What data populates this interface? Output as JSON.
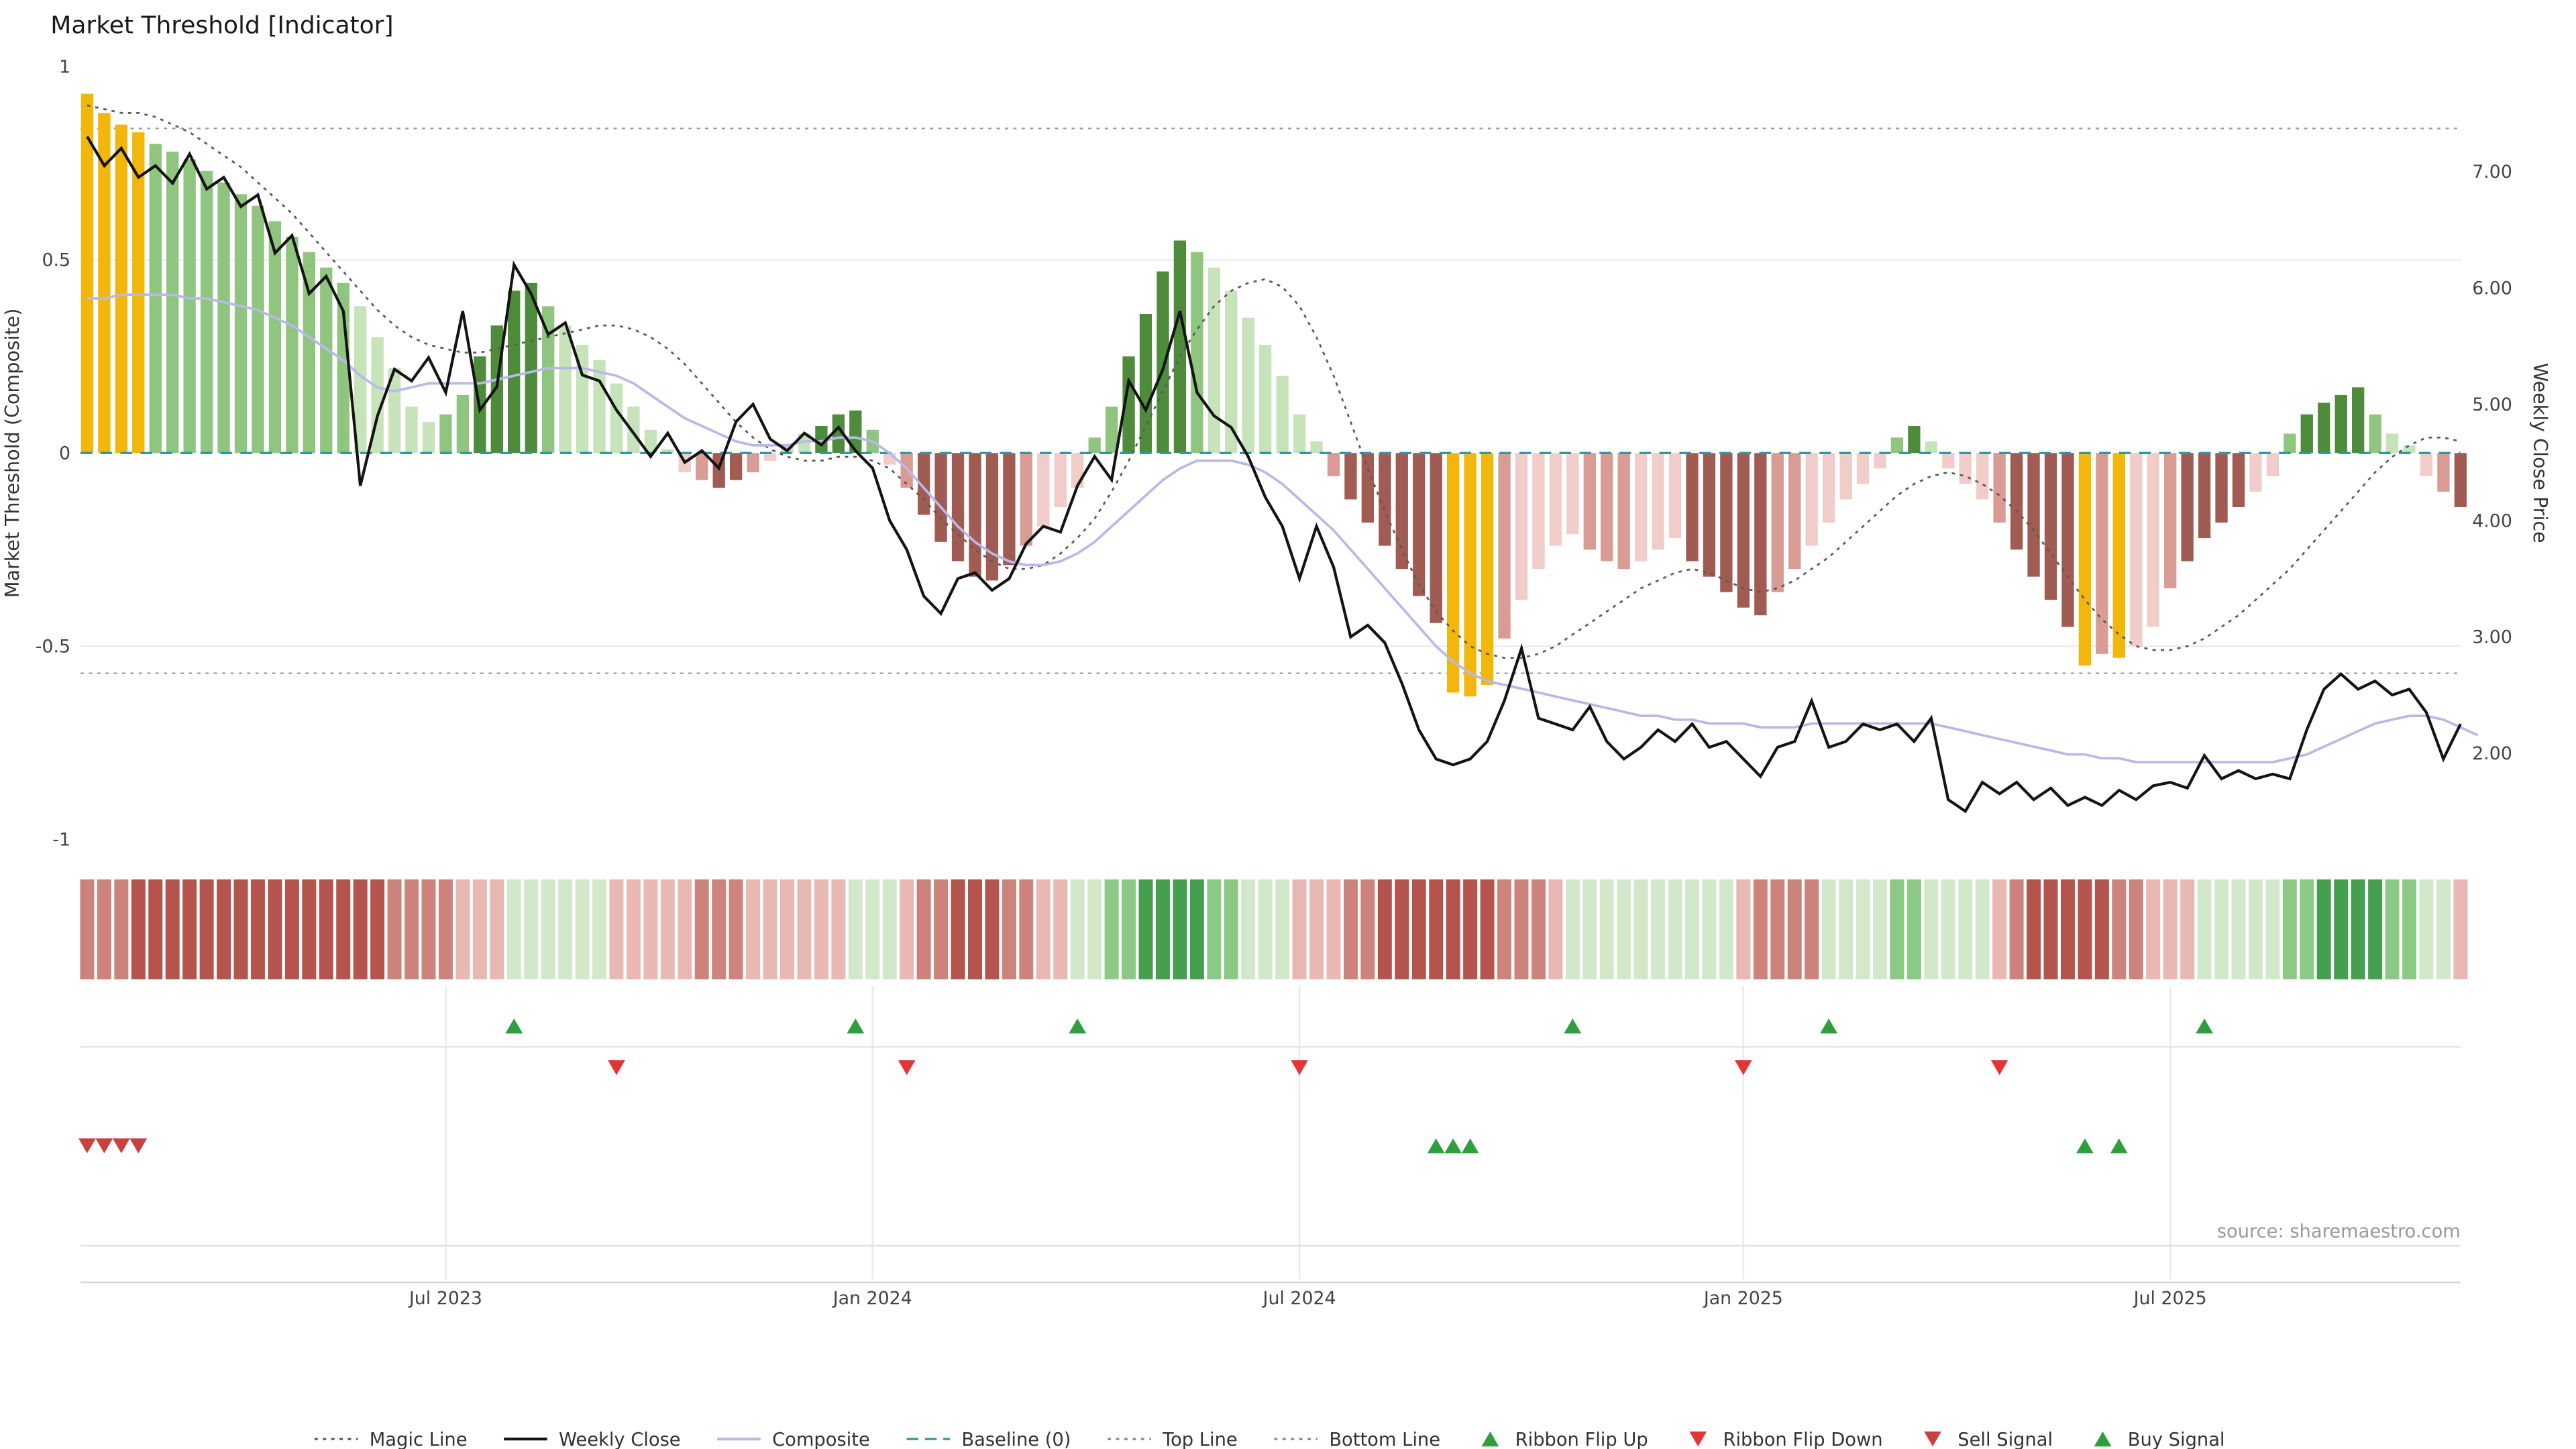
{
  "page": {
    "title": "Market Threshold [Indicator]",
    "source": "source: sharemaestro.com"
  },
  "axes": {
    "left_label": "Market Threshold (Composite)",
    "left_ticks": [
      "1",
      "0.5",
      "0",
      "-0.5",
      "-1"
    ],
    "right_label": "Weekly Close Price",
    "right_ticks": [
      "7.00",
      "6.00",
      "5.00",
      "4.00",
      "3.00",
      "2.00"
    ]
  },
  "legend": [
    {
      "label": "Magic Line",
      "type": "dotted",
      "color": "#5a5a5a"
    },
    {
      "label": "Weekly Close",
      "type": "solid",
      "color": "#141414"
    },
    {
      "label": "Composite",
      "type": "solid",
      "color": "#b9b9e8"
    },
    {
      "label": "Baseline (0)",
      "type": "dashed",
      "color": "#2e99a0"
    },
    {
      "label": "Top Line",
      "type": "dotted",
      "color": "#8a8a8a"
    },
    {
      "label": "Bottom Line",
      "type": "dotted",
      "color": "#8a8a8a"
    },
    {
      "label": "Ribbon Flip Up",
      "type": "tri-up",
      "color": "#2f9e3f"
    },
    {
      "label": "Ribbon Flip Down",
      "type": "tri-down",
      "color": "#e23535"
    },
    {
      "label": "Sell Signal",
      "type": "tri-down",
      "color": "#c94040"
    },
    {
      "label": "Buy Signal",
      "type": "tri-up",
      "color": "#2f9e3f"
    }
  ],
  "chart_data": {
    "type": "bar",
    "title": "Market Threshold [Indicator]",
    "xlabel": "",
    "ylabel_left": "Market Threshold (Composite)",
    "ylabel_right": "Weekly Close Price",
    "left_ylim": [
      -1,
      1
    ],
    "right_price_ylim": [
      1.2,
      7.9
    ],
    "top_line": 0.84,
    "bottom_line": -0.57,
    "baseline": 0,
    "freq": "weekly",
    "x_ticks": [
      {
        "label": "Jul 2023",
        "week": 21
      },
      {
        "label": "Jan 2024",
        "week": 46
      },
      {
        "label": "Jul 2024",
        "week": 71
      },
      {
        "label": "Jan 2025",
        "week": 97
      },
      {
        "label": "Jul 2025",
        "week": 122
      }
    ],
    "palette": {
      "Y": "#f2b70a",
      "g1": "#4e8c3c",
      "g2": "#8fc57e",
      "g3": "#c6e3ba",
      "r1": "#a05b52",
      "r2": "#d99c94",
      "r3": "#f0cdc8",
      "R1": "#b5544c",
      "R2": "#cd837b",
      "R3": "#e9b8b2",
      "G1": "#44a04e",
      "G2": "#8cc985",
      "G3": "#d2e9c9",
      "weekly_close": "#141414",
      "composite": "#b9b9e8",
      "magic": "#5a5a5a",
      "baseline": "#2e99a0",
      "topline": "#9a9a9a",
      "flip_up": "#2f9e3f",
      "flip_down": "#e23535",
      "sell": "#c94040",
      "buy": "#2f9e3f"
    },
    "bars": {
      "values": [
        0.93,
        0.88,
        0.85,
        0.83,
        0.8,
        0.78,
        0.76,
        0.73,
        0.7,
        0.67,
        0.64,
        0.6,
        0.56,
        0.52,
        0.48,
        0.44,
        0.38,
        0.3,
        0.22,
        0.12,
        0.08,
        0.1,
        0.15,
        0.25,
        0.33,
        0.42,
        0.44,
        0.38,
        0.33,
        0.28,
        0.24,
        0.18,
        0.12,
        0.06,
        0.01,
        -0.05,
        -0.07,
        -0.09,
        -0.07,
        -0.05,
        -0.02,
        0.02,
        0.05,
        0.07,
        0.1,
        0.11,
        0.06,
        -0.03,
        -0.09,
        -0.16,
        -0.23,
        -0.28,
        -0.32,
        -0.33,
        -0.29,
        -0.24,
        -0.19,
        -0.14,
        -0.09,
        0.04,
        0.12,
        0.25,
        0.36,
        0.47,
        0.55,
        0.52,
        0.48,
        0.42,
        0.35,
        0.28,
        0.2,
        0.1,
        0.03,
        -0.06,
        -0.12,
        -0.18,
        -0.24,
        -0.3,
        -0.37,
        -0.44,
        -0.62,
        -0.63,
        -0.6,
        -0.48,
        -0.38,
        -0.3,
        -0.24,
        -0.21,
        -0.25,
        -0.28,
        -0.3,
        -0.28,
        -0.25,
        -0.22,
        -0.28,
        -0.32,
        -0.36,
        -0.4,
        -0.42,
        -0.36,
        -0.3,
        -0.24,
        -0.18,
        -0.12,
        -0.08,
        -0.04,
        0.04,
        0.07,
        0.03,
        -0.04,
        -0.08,
        -0.12,
        -0.18,
        -0.25,
        -0.32,
        -0.38,
        -0.45,
        -0.55,
        -0.52,
        -0.53,
        -0.5,
        -0.45,
        -0.35,
        -0.28,
        -0.22,
        -0.18,
        -0.14,
        -0.1,
        -0.06,
        0.05,
        0.1,
        0.13,
        0.15,
        0.17,
        0.1,
        0.05,
        0.02,
        -0.06,
        -0.1,
        -0.14
      ],
      "colors": [
        "Y",
        "Y",
        "Y",
        "Y",
        "g2",
        "g2",
        "g2",
        "g2",
        "g2",
        "g2",
        "g2",
        "g2",
        "g2",
        "g2",
        "g2",
        "g2",
        "g3",
        "g3",
        "g3",
        "g3",
        "g3",
        "g2",
        "g2",
        "g1",
        "g1",
        "g1",
        "g1",
        "g2",
        "g3",
        "g3",
        "g3",
        "g3",
        "g3",
        "g3",
        "g3",
        "r3",
        "r2",
        "r1",
        "r1",
        "r2",
        "r3",
        "g3",
        "g3",
        "g1",
        "g1",
        "g1",
        "g2",
        "r3",
        "r2",
        "r1",
        "r1",
        "r1",
        "r1",
        "r1",
        "r1",
        "r2",
        "r3",
        "r3",
        "r3",
        "g2",
        "g2",
        "g1",
        "g1",
        "g1",
        "g1",
        "g2",
        "g3",
        "g3",
        "g3",
        "g3",
        "g3",
        "g3",
        "g3",
        "r2",
        "r1",
        "r1",
        "r1",
        "r1",
        "r1",
        "r1",
        "Y",
        "Y",
        "Y",
        "r2",
        "r3",
        "r3",
        "r3",
        "r3",
        "r2",
        "r2",
        "r2",
        "r3",
        "r3",
        "r3",
        "r1",
        "r1",
        "r1",
        "r1",
        "r1",
        "r2",
        "r2",
        "r3",
        "r3",
        "r3",
        "r3",
        "r3",
        "g2",
        "g1",
        "g3",
        "r3",
        "r3",
        "r3",
        "r2",
        "r1",
        "r1",
        "r1",
        "r1",
        "Y",
        "r2",
        "Y",
        "r3",
        "r3",
        "r2",
        "r1",
        "r1",
        "r1",
        "r1",
        "r3",
        "r3",
        "g2",
        "g1",
        "g1",
        "g1",
        "g1",
        "g2",
        "g3",
        "g3",
        "r3",
        "r2",
        "r1"
      ]
    },
    "weekly_close": [
      7.3,
      7.05,
      7.2,
      6.95,
      7.05,
      6.9,
      7.15,
      6.85,
      6.95,
      6.7,
      6.8,
      6.3,
      6.45,
      5.95,
      6.1,
      5.8,
      4.3,
      4.9,
      5.3,
      5.2,
      5.4,
      5.1,
      5.8,
      4.95,
      5.15,
      6.2,
      5.95,
      5.6,
      5.7,
      5.25,
      5.2,
      4.95,
      4.75,
      4.55,
      4.75,
      4.5,
      4.6,
      4.45,
      4.85,
      5.0,
      4.7,
      4.6,
      4.75,
      4.65,
      4.8,
      4.6,
      4.45,
      4.0,
      3.75,
      3.35,
      3.2,
      3.5,
      3.55,
      3.4,
      3.5,
      3.8,
      3.95,
      3.9,
      4.3,
      4.55,
      4.35,
      5.2,
      4.95,
      5.3,
      5.8,
      5.1,
      4.9,
      4.8,
      4.55,
      4.2,
      3.95,
      3.5,
      3.95,
      3.6,
      3.0,
      3.1,
      2.95,
      2.6,
      2.2,
      1.95,
      1.9,
      1.95,
      2.1,
      2.45,
      2.9,
      2.3,
      2.25,
      2.2,
      2.4,
      2.1,
      1.95,
      2.05,
      2.2,
      2.1,
      2.25,
      2.05,
      2.1,
      1.95,
      1.8,
      2.05,
      2.1,
      2.45,
      2.05,
      2.1,
      2.25,
      2.2,
      2.25,
      2.1,
      2.3,
      1.6,
      1.5,
      1.75,
      1.65,
      1.75,
      1.6,
      1.7,
      1.55,
      1.62,
      1.55,
      1.68,
      1.6,
      1.72,
      1.75,
      1.7,
      1.98,
      1.78,
      1.85,
      1.78,
      1.82,
      1.78,
      2.2,
      2.55,
      2.68,
      2.55,
      2.62,
      2.5,
      2.55,
      2.35,
      1.95,
      2.25
    ],
    "composite_line": [
      0.4,
      0.4,
      0.41,
      0.41,
      0.41,
      0.41,
      0.4,
      0.4,
      0.39,
      0.38,
      0.37,
      0.35,
      0.33,
      0.3,
      0.27,
      0.24,
      0.2,
      0.17,
      0.16,
      0.17,
      0.18,
      0.18,
      0.18,
      0.18,
      0.19,
      0.2,
      0.21,
      0.22,
      0.22,
      0.22,
      0.21,
      0.2,
      0.18,
      0.15,
      0.12,
      0.09,
      0.07,
      0.05,
      0.03,
      0.02,
      0.02,
      0.02,
      0.03,
      0.03,
      0.04,
      0.04,
      0.03,
      0.0,
      -0.04,
      -0.09,
      -0.14,
      -0.19,
      -0.23,
      -0.26,
      -0.28,
      -0.29,
      -0.29,
      -0.28,
      -0.26,
      -0.23,
      -0.19,
      -0.15,
      -0.11,
      -0.07,
      -0.04,
      -0.02,
      -0.02,
      -0.02,
      -0.03,
      -0.05,
      -0.08,
      -0.12,
      -0.16,
      -0.2,
      -0.25,
      -0.3,
      -0.35,
      -0.4,
      -0.45,
      -0.5,
      -0.54,
      -0.57,
      -0.59,
      -0.6,
      -0.61,
      -0.62,
      -0.63,
      -0.64,
      -0.65,
      -0.66,
      -0.67,
      -0.68,
      -0.68,
      -0.69,
      -0.69,
      -0.7,
      -0.7,
      -0.7,
      -0.71,
      -0.71,
      -0.71,
      -0.7,
      -0.7,
      -0.7,
      -0.7,
      -0.7,
      -0.7,
      -0.7,
      -0.7,
      -0.71,
      -0.72,
      -0.73,
      -0.74,
      -0.75,
      -0.76,
      -0.77,
      -0.78,
      -0.78,
      -0.79,
      -0.79,
      -0.8,
      -0.8,
      -0.8,
      -0.8,
      -0.8,
      -0.8,
      -0.8,
      -0.8,
      -0.8,
      -0.79,
      -0.78,
      -0.76,
      -0.74,
      -0.72,
      -0.7,
      -0.69,
      -0.68,
      -0.68,
      -0.69,
      -0.71,
      -0.73
    ],
    "magic_line": [
      0.9,
      0.89,
      0.88,
      0.88,
      0.87,
      0.85,
      0.83,
      0.8,
      0.77,
      0.74,
      0.7,
      0.66,
      0.62,
      0.57,
      0.52,
      0.47,
      0.42,
      0.37,
      0.33,
      0.3,
      0.28,
      0.27,
      0.26,
      0.26,
      0.27,
      0.28,
      0.29,
      0.3,
      0.31,
      0.32,
      0.33,
      0.33,
      0.32,
      0.3,
      0.27,
      0.23,
      0.18,
      0.13,
      0.08,
      0.04,
      0.01,
      -0.01,
      -0.02,
      -0.02,
      -0.01,
      -0.01,
      -0.02,
      -0.04,
      -0.08,
      -0.12,
      -0.17,
      -0.21,
      -0.25,
      -0.28,
      -0.3,
      -0.3,
      -0.29,
      -0.26,
      -0.22,
      -0.17,
      -0.1,
      -0.02,
      0.07,
      0.16,
      0.25,
      0.32,
      0.38,
      0.42,
      0.44,
      0.45,
      0.43,
      0.38,
      0.3,
      0.2,
      0.08,
      -0.04,
      -0.15,
      -0.25,
      -0.34,
      -0.41,
      -0.46,
      -0.5,
      -0.52,
      -0.53,
      -0.53,
      -0.52,
      -0.5,
      -0.47,
      -0.44,
      -0.41,
      -0.38,
      -0.35,
      -0.33,
      -0.31,
      -0.3,
      -0.31,
      -0.33,
      -0.35,
      -0.36,
      -0.35,
      -0.33,
      -0.3,
      -0.27,
      -0.23,
      -0.19,
      -0.15,
      -0.11,
      -0.08,
      -0.06,
      -0.05,
      -0.06,
      -0.08,
      -0.11,
      -0.15,
      -0.2,
      -0.26,
      -0.32,
      -0.38,
      -0.43,
      -0.47,
      -0.5,
      -0.51,
      -0.51,
      -0.5,
      -0.48,
      -0.45,
      -0.42,
      -0.38,
      -0.34,
      -0.3,
      -0.25,
      -0.2,
      -0.15,
      -0.1,
      -0.05,
      -0.01,
      0.02,
      0.04,
      0.04,
      0.03
    ],
    "ribbon": [
      "R2",
      "R2",
      "R2",
      "R1",
      "R1",
      "R1",
      "R1",
      "R1",
      "R1",
      "R1",
      "R1",
      "R1",
      "R1",
      "R1",
      "R1",
      "R1",
      "R1",
      "R1",
      "R2",
      "R2",
      "R2",
      "R2",
      "R3",
      "R3",
      "R3",
      "G3",
      "G3",
      "G3",
      "G3",
      "G3",
      "G3",
      "R3",
      "R3",
      "R3",
      "R3",
      "R3",
      "R2",
      "R2",
      "R2",
      "R3",
      "R3",
      "R3",
      "R3",
      "R3",
      "R3",
      "G3",
      "G3",
      "G3",
      "R3",
      "R2",
      "R2",
      "R1",
      "R1",
      "R1",
      "R2",
      "R2",
      "R3",
      "R3",
      "G3",
      "G3",
      "G2",
      "G2",
      "G1",
      "G1",
      "G1",
      "G1",
      "G2",
      "G2",
      "G3",
      "G3",
      "G3",
      "R3",
      "R3",
      "R3",
      "R2",
      "R2",
      "R1",
      "R1",
      "R1",
      "R1",
      "R1",
      "R1",
      "R1",
      "R2",
      "R2",
      "R2",
      "R3",
      "G3",
      "G3",
      "G3",
      "G3",
      "G3",
      "G3",
      "G3",
      "G3",
      "G3",
      "G3",
      "R3",
      "R2",
      "R2",
      "R2",
      "R2",
      "G3",
      "G3",
      "G3",
      "G3",
      "G2",
      "G2",
      "G3",
      "G3",
      "G3",
      "G3",
      "R3",
      "R2",
      "R1",
      "R1",
      "R1",
      "R1",
      "R1",
      "R2",
      "R2",
      "R3",
      "R3",
      "R3",
      "G3",
      "G3",
      "G3",
      "G3",
      "G3",
      "G2",
      "G2",
      "G1",
      "G1",
      "G1",
      "G1",
      "G2",
      "G2",
      "G3",
      "G3",
      "R3"
    ],
    "signals": {
      "ribbon_flip_up": [
        25,
        45,
        58,
        87,
        102,
        124
      ],
      "ribbon_flip_down": [
        31,
        48,
        71,
        97,
        112
      ],
      "sell": [
        0,
        1,
        2,
        3
      ],
      "buy": [
        79,
        80,
        81,
        117,
        119
      ]
    }
  }
}
